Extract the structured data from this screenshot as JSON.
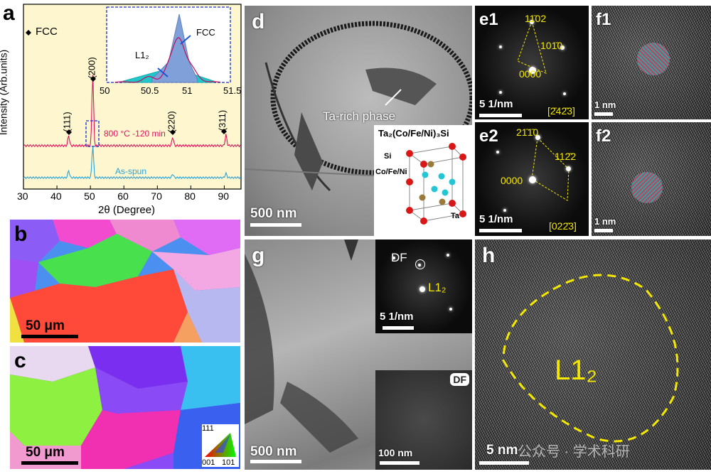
{
  "a": {
    "label": "a",
    "fcc_legend": "FCC",
    "ylabel": "Intensity (Arb.units)",
    "xlabel": "2θ (Degree)",
    "xticks": [
      "30",
      "40",
      "50",
      "60",
      "70",
      "80",
      "90"
    ],
    "peaks": [
      "(111)",
      "(200)",
      "(220)",
      "(311)"
    ],
    "annealed_label": "800 °C -120 min",
    "asspun_label": "As-spun",
    "inset": {
      "fcc": "FCC",
      "l12": "L1₂",
      "xticks": [
        "50",
        "50.5",
        "51",
        "51.5"
      ]
    },
    "colors": {
      "annealed": "#e0135f",
      "asspun": "#2aa2d8",
      "bg": "#fdf6cf"
    }
  },
  "chart_data": [
    {
      "type": "line",
      "title": "",
      "xlabel": "2θ (Degree)",
      "ylabel": "Intensity (Arb.units)",
      "xlim": [
        30,
        95
      ],
      "series": [
        {
          "name": "800 °C -120 min",
          "x": [
            43.5,
            50.7,
            74.6,
            90.5
          ],
          "peak_heights": [
            0.12,
            0.85,
            0.1,
            0.13
          ]
        },
        {
          "name": "As-spun",
          "x": [
            43.5,
            50.7,
            74.6,
            90.5
          ],
          "peak_heights": [
            0.1,
            0.45,
            0.05,
            0.06
          ]
        }
      ]
    },
    {
      "type": "area",
      "title": "",
      "xlim": [
        50,
        51.5
      ],
      "series": [
        {
          "name": "FCC",
          "x": [
            50.55,
            50.75,
            50.88,
            51.0,
            51.1
          ],
          "values": [
            0.05,
            0.3,
            1.0,
            0.3,
            0.05
          ]
        },
        {
          "name": "L1₂",
          "x": [
            50.2,
            50.5,
            50.8,
            51.05,
            51.3
          ],
          "values": [
            0.02,
            0.12,
            0.22,
            0.12,
            0.02
          ]
        }
      ]
    }
  ],
  "b": {
    "label": "b",
    "scale": "50 μm"
  },
  "c": {
    "label": "c",
    "scale": "50 μm",
    "legend": {
      "t": "111",
      "l": "001",
      "r": "101"
    }
  },
  "d": {
    "label": "d",
    "scale": "500 nm",
    "annotation": "Ta-rich phase",
    "inset": {
      "title": "Ta₂(Co/Fe/Ni)₃Si",
      "si": "Si",
      "cofeni": "Co/Fe/Ni",
      "ta": "Ta"
    }
  },
  "e1": {
    "label": "e1",
    "scale": "5 1/nm",
    "zone": "[2̄42̄3]",
    "s1": "11̄02",
    "s2": "101̄0",
    "s0": "0000"
  },
  "e2": {
    "label": "e2",
    "scale": "5 1/nm",
    "zone": "[022̄3]",
    "s1": "21̄1̄0",
    "s2": "112̄2",
    "s0": "0000"
  },
  "f1": {
    "label": "f1",
    "scale": "1 nm"
  },
  "f2": {
    "label": "f2",
    "scale": "1 nm"
  },
  "g": {
    "label": "g",
    "scale": "500 nm",
    "saed": {
      "df": "DF",
      "l12": "L1₂",
      "scale": "5 1/nm"
    },
    "dfimg": {
      "badge": "DF",
      "scale": "100 nm"
    }
  },
  "h": {
    "label": "h",
    "scale": "5 nm",
    "region": "L1₂",
    "watermark": "公众号 · 学术科研"
  }
}
